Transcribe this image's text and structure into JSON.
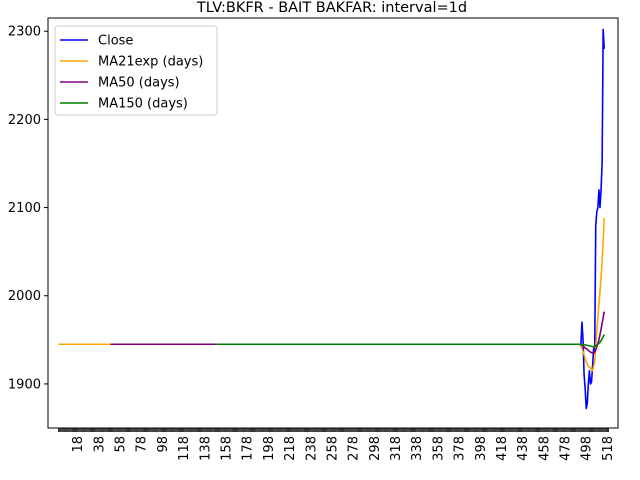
{
  "chart_data": {
    "type": "line",
    "title": "TLV:BKFR - BAIT BAKFAR: interval=1d",
    "xlabel": "",
    "ylabel": "",
    "xlim": [
      -10,
      528
    ],
    "ylim": [
      1850,
      2315
    ],
    "grid": false,
    "legend_position": "top-left",
    "yticks": [
      1900,
      2000,
      2100,
      2200,
      2300
    ],
    "xtick_labels": [
      "18",
      "38",
      "58",
      "78",
      "98",
      "118",
      "138",
      "158",
      "178",
      "198",
      "218",
      "238",
      "258",
      "278",
      "298",
      "318",
      "338",
      "358",
      "378",
      "398",
      "418",
      "438",
      "458",
      "478",
      "498",
      "518"
    ],
    "xtick_values": [
      18,
      38,
      58,
      78,
      98,
      118,
      138,
      158,
      178,
      198,
      218,
      238,
      258,
      278,
      298,
      318,
      338,
      358,
      378,
      398,
      418,
      438,
      458,
      478,
      498,
      518
    ],
    "series": [
      {
        "name": "Close",
        "color": "#0000ff",
        "x": [
          493,
          494,
          495,
          496,
          497,
          498,
          499,
          500,
          501,
          502,
          503,
          504,
          505,
          506,
          507,
          508,
          509,
          510,
          511,
          512,
          513,
          514,
          515
        ],
        "y": [
          1945,
          1970,
          1950,
          1910,
          1895,
          1872,
          1878,
          1900,
          1915,
          1900,
          1902,
          1920,
          1940,
          1935,
          2080,
          2095,
          2100,
          2120,
          2100,
          2120,
          2150,
          2302,
          2280
        ]
      },
      {
        "name": "MA21exp (days)",
        "color": "#ffa500",
        "x": [
          0,
          480,
          492,
          494,
          496,
          498,
          500,
          502,
          504,
          506,
          508,
          510,
          512,
          514,
          515
        ],
        "y": [
          1945,
          1945,
          1945,
          1940,
          1933,
          1925,
          1920,
          1918,
          1915,
          1925,
          1960,
          1990,
          2020,
          2060,
          2088
        ]
      },
      {
        "name": "MA50 (days)",
        "color": "#800080",
        "x": [
          49,
          492,
          494,
          496,
          498,
          500,
          502,
          504,
          506,
          508,
          510,
          512,
          514,
          515
        ],
        "y": [
          1945,
          1945,
          1944,
          1942,
          1940,
          1938,
          1936,
          1935,
          1936,
          1942,
          1950,
          1962,
          1975,
          1982
        ]
      },
      {
        "name": "MA150 (days)",
        "color": "#008000",
        "x": [
          149,
          493,
          498,
          502,
          505,
          508,
          511,
          513,
          515
        ],
        "y": [
          1945,
          1945,
          1944,
          1943,
          1942,
          1944,
          1947,
          1951,
          1956
        ]
      }
    ]
  }
}
